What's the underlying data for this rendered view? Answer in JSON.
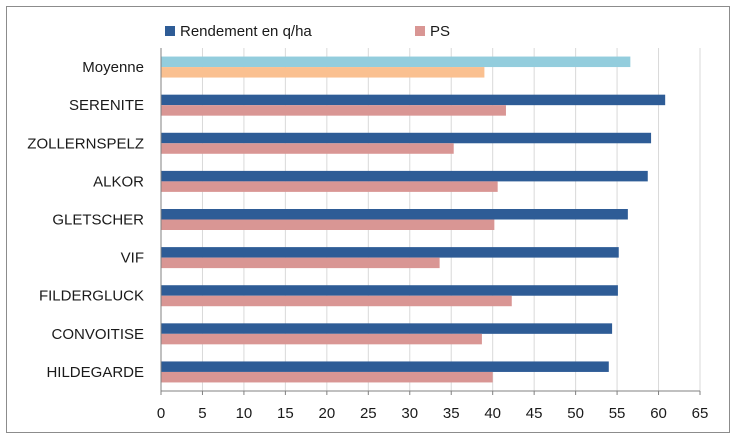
{
  "chart_data": {
    "type": "bar",
    "orientation": "horizontal",
    "categories": [
      "Moyenne",
      "SERENITE",
      "ZOLLERNSPELZ",
      "ALKOR",
      "GLETSCHER",
      "VIF",
      "FILDERGLUCK",
      "CONVOITISE",
      "HILDEGARDE"
    ],
    "series": [
      {
        "name": "Rendement en q/ha",
        "color": "#2e5c96",
        "highlight_color": "#93cddd",
        "values": [
          56.6,
          60.8,
          59.1,
          58.7,
          56.3,
          55.2,
          55.1,
          54.4,
          54.0
        ]
      },
      {
        "name": "PS",
        "color": "#d99694",
        "highlight_color": "#fac090",
        "values": [
          39.0,
          41.6,
          35.3,
          40.6,
          40.2,
          33.6,
          42.3,
          38.7,
          40.0
        ]
      }
    ],
    "xlim": [
      0,
      65
    ],
    "xticks": [
      "0",
      "5",
      "10",
      "15",
      "20",
      "25",
      "30",
      "35",
      "40",
      "45",
      "50",
      "55",
      "60",
      "65"
    ],
    "grid": true,
    "legend_position": "top"
  }
}
